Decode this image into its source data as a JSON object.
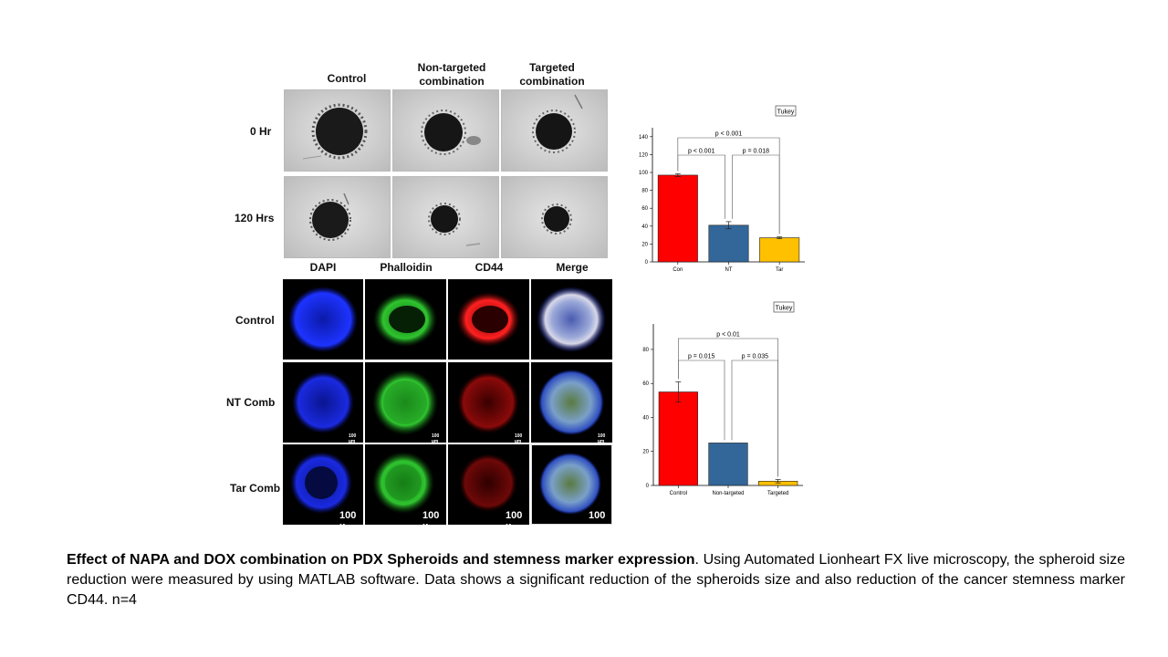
{
  "brightfield": {
    "col_headers": [
      "Control",
      "Non-targeted\ncombination",
      "Targeted\ncombination"
    ],
    "row_labels": [
      "0 Hr",
      "120 Hrs"
    ]
  },
  "fluorescence": {
    "col_headers": [
      "DAPI",
      "Phalloidin",
      "CD44",
      "Merge"
    ],
    "row_labels": [
      "Control",
      "NT Comb",
      "Tar Comb"
    ],
    "scale_small": "100 µm",
    "scale_big": "100 µ"
  },
  "chart_data": [
    {
      "type": "bar",
      "categories": [
        "Con",
        "NT",
        "Tar"
      ],
      "values": [
        97,
        41,
        27
      ],
      "errors": [
        1.5,
        4,
        1
      ],
      "colors": [
        "#ff0000",
        "#336699",
        "#ffc000"
      ],
      "yticks": [
        0,
        20,
        40,
        60,
        80,
        100,
        120,
        140
      ],
      "ylim": [
        0,
        150
      ],
      "legend": "Tukey",
      "annotations": [
        {
          "from": 0,
          "to": 2,
          "text": "p < 0.001"
        },
        {
          "from": 0,
          "to": 1,
          "text": "p < 0.001"
        },
        {
          "from": 1,
          "to": 2,
          "text": "p = 0.018"
        }
      ]
    },
    {
      "type": "bar",
      "categories": [
        "Control",
        "Non-targeted",
        "Targeted"
      ],
      "values": [
        55,
        25,
        2.5
      ],
      "errors": [
        6,
        0,
        1
      ],
      "colors": [
        "#ff0000",
        "#336699",
        "#ffc000"
      ],
      "yticks": [
        0,
        20,
        40,
        60,
        80
      ],
      "ylim": [
        0,
        95
      ],
      "legend": "Tukey",
      "annotations": [
        {
          "from": 0,
          "to": 2,
          "text": "p < 0.01"
        },
        {
          "from": 0,
          "to": 1,
          "text": "p = 0.015"
        },
        {
          "from": 1,
          "to": 2,
          "text": "p = 0.035"
        }
      ]
    }
  ],
  "caption": {
    "bold": "Effect of NAPA and DOX combination on PDX Spheroids and stemness marker expression",
    "rest": ". Using Automated Lionheart FX live microscopy, the spheroid size reduction were measured by using MATLAB software. Data shows a significant reduction of the spheroids size and also reduction of the cancer stemness marker CD44. n=4"
  }
}
